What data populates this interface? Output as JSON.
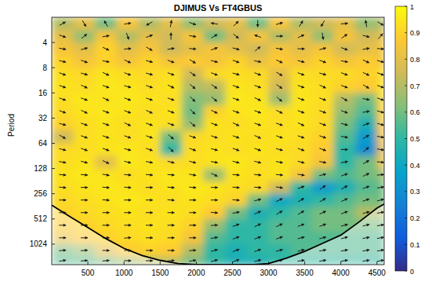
{
  "chart_data": {
    "type": "heatmap",
    "title": "DJIMUS Vs FT4GBUS",
    "y_label": "Period",
    "log": "y",
    "xlim": [
      0,
      4600
    ],
    "xticks": [
      500,
      1000,
      1500,
      2000,
      2500,
      3000,
      3500,
      4000,
      4500
    ],
    "ylim": [
      2,
      1800
    ],
    "yticks": [
      4,
      8,
      16,
      32,
      64,
      128,
      256,
      512,
      1024
    ],
    "x_edges": [
      0,
      300,
      600,
      900,
      1200,
      1500,
      1800,
      2100,
      2400,
      2700,
      3000,
      3300,
      3600,
      3900,
      4200,
      4500,
      4600
    ],
    "y_edges": [
      2,
      2.83,
      4,
      5.66,
      8,
      11.3,
      16,
      22.6,
      32,
      45,
      64,
      90,
      128,
      181,
      256,
      362,
      512,
      724,
      1024,
      1448,
      1800
    ],
    "cells": [
      [
        0.7,
        0.8,
        0.6,
        0.85,
        0.7,
        0.8,
        0.65,
        0.75,
        0.8,
        0.6,
        0.85,
        0.7,
        0.75,
        0.8,
        0.65,
        0.7
      ],
      [
        0.8,
        0.65,
        0.85,
        0.7,
        0.8,
        0.75,
        0.85,
        0.6,
        0.75,
        0.85,
        0.7,
        0.8,
        0.65,
        0.85,
        0.75,
        0.8
      ],
      [
        0.85,
        0.8,
        0.9,
        0.8,
        0.85,
        0.75,
        0.8,
        0.85,
        0.8,
        0.75,
        0.85,
        0.8,
        0.85,
        0.75,
        0.8,
        0.85
      ],
      [
        0.9,
        0.85,
        0.9,
        0.85,
        0.9,
        0.85,
        0.88,
        0.85,
        0.9,
        0.82,
        0.88,
        0.85,
        0.9,
        0.85,
        0.88,
        0.85
      ],
      [
        0.93,
        0.92,
        0.94,
        0.93,
        0.92,
        0.93,
        0.75,
        0.92,
        0.93,
        0.92,
        0.8,
        0.93,
        0.92,
        0.92,
        0.9,
        0.92
      ],
      [
        0.94,
        0.93,
        0.95,
        0.94,
        0.93,
        0.94,
        0.7,
        0.72,
        0.94,
        0.93,
        0.75,
        0.94,
        0.93,
        0.9,
        0.88,
        0.93
      ],
      [
        0.93,
        0.95,
        0.94,
        0.95,
        0.94,
        0.93,
        0.62,
        0.65,
        0.95,
        0.94,
        0.66,
        0.94,
        0.93,
        0.7,
        0.6,
        0.92
      ],
      [
        0.92,
        0.94,
        0.95,
        0.94,
        0.93,
        0.94,
        0.6,
        0.9,
        0.94,
        0.95,
        0.93,
        0.94,
        0.92,
        0.65,
        0.55,
        0.9
      ],
      [
        0.9,
        0.93,
        0.94,
        0.93,
        0.94,
        0.93,
        0.65,
        0.94,
        0.93,
        0.94,
        0.93,
        0.94,
        0.92,
        0.6,
        0.45,
        0.88
      ],
      [
        0.75,
        0.93,
        0.94,
        0.93,
        0.94,
        0.6,
        0.92,
        0.93,
        0.94,
        0.93,
        0.94,
        0.93,
        0.9,
        0.55,
        0.35,
        0.85
      ],
      [
        0.92,
        0.93,
        0.94,
        0.95,
        0.93,
        0.5,
        0.93,
        0.94,
        0.93,
        0.94,
        0.93,
        0.92,
        0.88,
        0.5,
        0.3,
        0.8
      ],
      [
        0.93,
        0.94,
        0.8,
        0.95,
        0.94,
        0.92,
        0.93,
        0.94,
        0.95,
        0.93,
        0.94,
        0.92,
        0.85,
        0.5,
        0.6,
        0.82
      ],
      [
        0.94,
        0.95,
        0.94,
        0.93,
        0.94,
        0.95,
        0.94,
        0.65,
        0.94,
        0.93,
        0.94,
        0.85,
        0.6,
        0.55,
        0.6,
        0.65
      ],
      [
        0.93,
        0.94,
        0.95,
        0.94,
        0.93,
        0.94,
        0.95,
        0.94,
        0.93,
        0.92,
        0.75,
        0.5,
        0.35,
        0.45,
        0.55,
        0.6
      ],
      [
        0.92,
        0.93,
        0.94,
        0.95,
        0.94,
        0.93,
        0.94,
        0.93,
        0.9,
        0.6,
        0.4,
        0.45,
        0.5,
        0.55,
        0.6,
        0.6
      ],
      [
        0.9,
        0.92,
        0.93,
        0.94,
        0.93,
        0.94,
        0.93,
        0.88,
        0.6,
        0.45,
        0.5,
        0.55,
        0.6,
        0.6,
        0.7,
        0.7
      ],
      [
        0.88,
        0.9,
        0.92,
        0.93,
        0.94,
        0.93,
        0.9,
        0.65,
        0.5,
        0.5,
        0.55,
        0.55,
        0.6,
        0.6,
        0.6,
        0.6
      ],
      [
        0.82,
        0.88,
        0.9,
        0.92,
        0.93,
        0.92,
        0.85,
        0.55,
        0.5,
        0.5,
        0.55,
        0.55,
        0.55,
        0.55,
        0.55,
        0.55
      ],
      [
        0.6,
        0.65,
        0.8,
        0.88,
        0.9,
        0.88,
        0.7,
        0.5,
        0.45,
        0.5,
        0.5,
        0.55,
        0.55,
        0.55,
        0.55,
        0.55
      ],
      [
        0.55,
        0.55,
        0.6,
        0.65,
        0.7,
        0.7,
        0.6,
        0.5,
        0.45,
        0.45,
        0.5,
        0.5,
        0.5,
        0.5,
        0.5,
        0.5
      ]
    ],
    "phase": [
      [
        30,
        -60,
        120,
        10,
        -150,
        80,
        -20,
        170,
        45,
        -90,
        15,
        60,
        -120,
        5,
        100,
        -30
      ],
      [
        -20,
        40,
        10,
        -70,
        20,
        90,
        -10,
        30,
        -40,
        160,
        0,
        25,
        -80,
        35,
        -15,
        50
      ],
      [
        -10,
        15,
        -25,
        5,
        -30,
        10,
        -5,
        20,
        -15,
        40,
        -10,
        0,
        15,
        -20,
        10,
        -5
      ],
      [
        -15,
        -20,
        -10,
        -25,
        -15,
        -20,
        -30,
        -15,
        -20,
        -10,
        -25,
        -15,
        -20,
        -10,
        -25,
        -15
      ],
      [
        -20,
        -15,
        -25,
        -20,
        -15,
        -20,
        -35,
        -20,
        -15,
        -20,
        -30,
        -20,
        -15,
        -20,
        -25,
        -20
      ],
      [
        -20,
        -25,
        -20,
        -15,
        -20,
        -25,
        -40,
        -35,
        -20,
        -20,
        -35,
        -20,
        -25,
        -20,
        -30,
        -20
      ],
      [
        -20,
        -20,
        -25,
        -20,
        -20,
        -20,
        -45,
        -40,
        -20,
        -25,
        -40,
        -20,
        -20,
        -30,
        -10,
        -20
      ],
      [
        -20,
        -25,
        -20,
        -20,
        -25,
        -20,
        -45,
        -25,
        -20,
        -20,
        -25,
        -20,
        -20,
        -20,
        10,
        -15
      ],
      [
        -15,
        -20,
        -20,
        -25,
        -20,
        -20,
        -40,
        -20,
        -25,
        -20,
        -20,
        -25,
        -20,
        -15,
        20,
        -15
      ],
      [
        -30,
        -20,
        -20,
        -20,
        -20,
        -40,
        -20,
        -20,
        -20,
        -25,
        -20,
        -20,
        -20,
        -10,
        30,
        -10
      ],
      [
        -15,
        -20,
        -20,
        -15,
        -20,
        -45,
        -20,
        -15,
        -20,
        -20,
        -15,
        -20,
        -20,
        0,
        40,
        -10
      ],
      [
        -10,
        -15,
        -25,
        -15,
        -10,
        -15,
        -15,
        -10,
        -15,
        -15,
        -10,
        -15,
        -10,
        10,
        30,
        -5
      ],
      [
        -5,
        -5,
        -10,
        -5,
        -5,
        -5,
        -10,
        -25,
        -5,
        -5,
        -5,
        -10,
        15,
        20,
        25,
        5
      ],
      [
        -5,
        0,
        -5,
        -5,
        0,
        -5,
        -5,
        0,
        -5,
        -5,
        -10,
        20,
        35,
        30,
        20,
        10
      ],
      [
        0,
        0,
        -5,
        0,
        0,
        -5,
        0,
        0,
        -5,
        15,
        25,
        30,
        30,
        25,
        20,
        15
      ],
      [
        0,
        0,
        0,
        0,
        0,
        0,
        0,
        -5,
        10,
        25,
        30,
        30,
        25,
        20,
        15,
        10
      ],
      [
        0,
        0,
        0,
        0,
        0,
        0,
        0,
        5,
        20,
        25,
        25,
        20,
        20,
        15,
        15,
        10
      ],
      [
        0,
        0,
        0,
        5,
        0,
        0,
        0,
        10,
        20,
        20,
        20,
        15,
        15,
        15,
        10,
        10
      ],
      [
        5,
        5,
        0,
        0,
        0,
        0,
        5,
        15,
        20,
        20,
        15,
        15,
        10,
        10,
        10,
        10
      ],
      [
        10,
        5,
        5,
        0,
        0,
        5,
        10,
        15,
        20,
        15,
        15,
        10,
        10,
        10,
        10,
        10
      ]
    ],
    "coi": {
      "x": [
        0,
        250,
        500,
        750,
        1000,
        1250,
        1500,
        1750,
        2000,
        2500,
        2800,
        3000,
        3250,
        3500,
        3750,
        4000,
        4250,
        4500,
        4600
      ],
      "period": [
        350,
        480,
        650,
        880,
        1150,
        1400,
        1600,
        1750,
        1800,
        1800,
        1800,
        1750,
        1500,
        1250,
        1000,
        800,
        560,
        380,
        340
      ]
    },
    "colorbar_range": [
      0,
      1
    ],
    "colorbar_ticks": [
      0,
      0.1,
      0.2,
      0.3,
      0.4,
      0.5,
      0.6,
      0.7,
      0.8,
      0.9,
      1
    ]
  }
}
